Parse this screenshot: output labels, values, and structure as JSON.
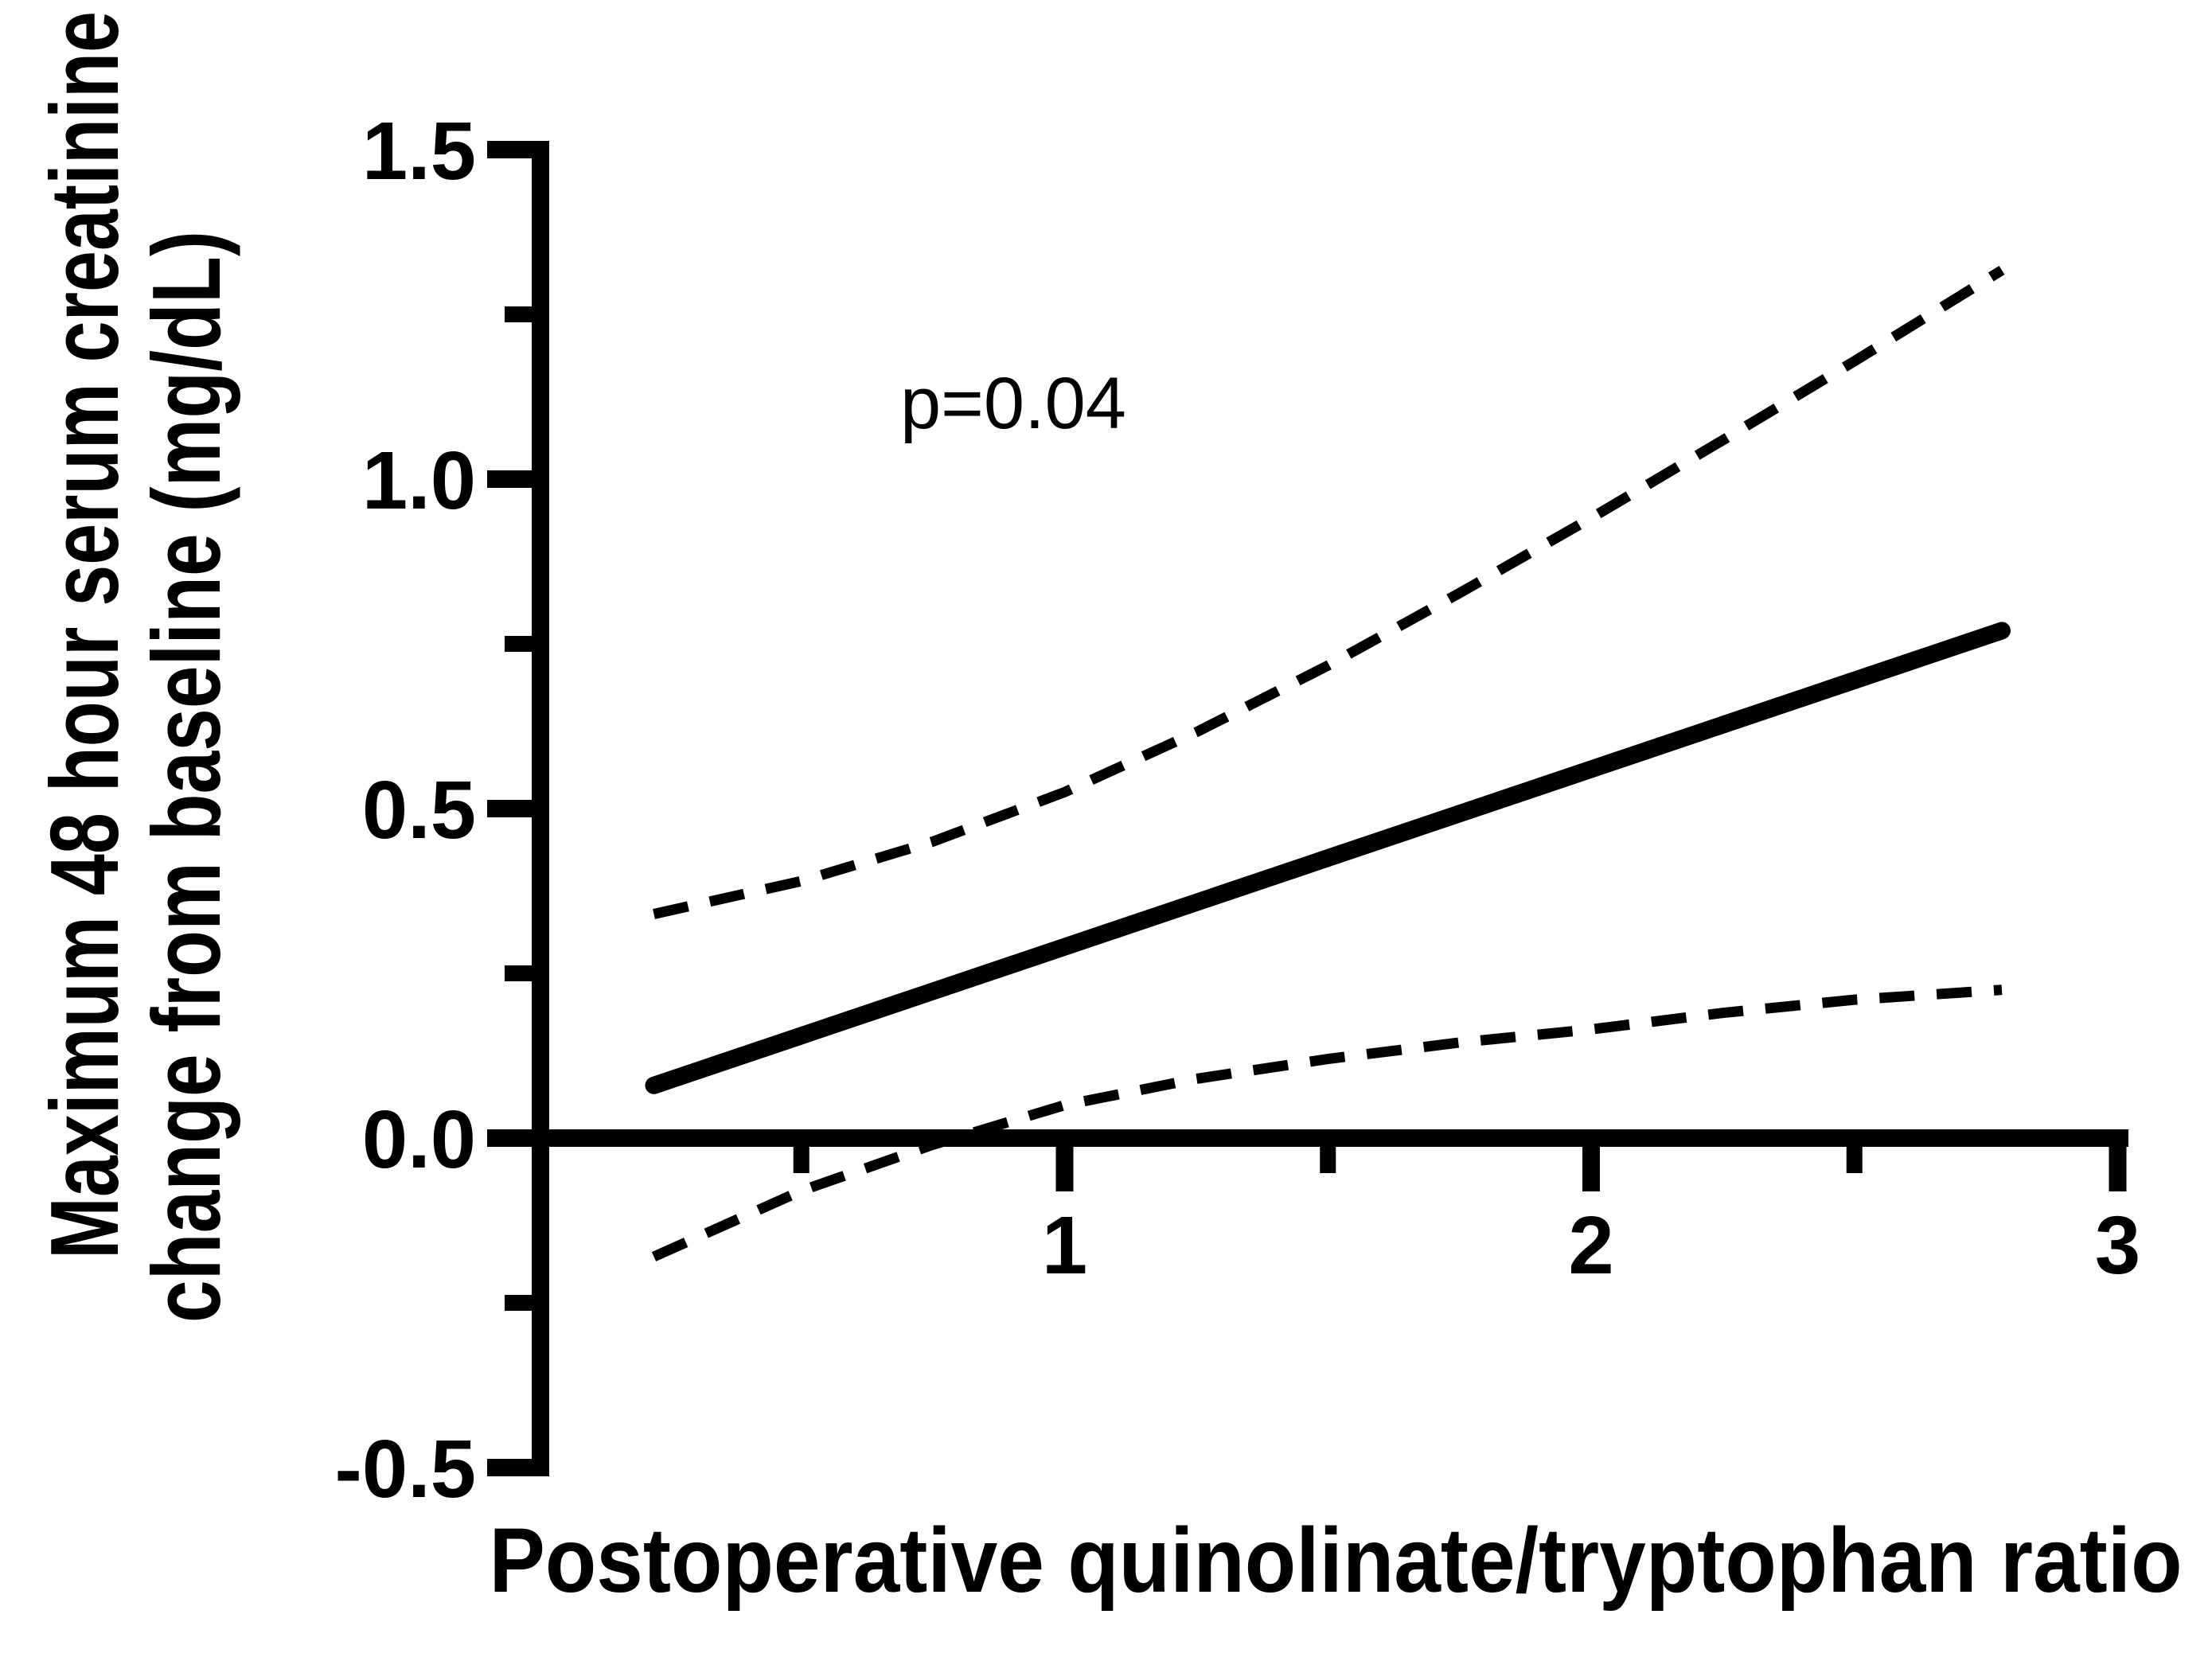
{
  "figure": {
    "background_color": "#ffffff",
    "ink_color": "#000000"
  },
  "chart_data": {
    "type": "line",
    "title": "",
    "xlabel": "Postoperative quinolinate/tryptophan ratio",
    "ylabel": "Maximum 48 hour serum creatinine change from baseline (mg/dL)",
    "ylabel_lines": [
      "Maximum 48 hour serum creatinine",
      "change from baseline (mg/dL)"
    ],
    "annotation": {
      "text": "p=0.04",
      "x": 0.9,
      "y": 1.12
    },
    "p_value": 0.04,
    "grid": false,
    "legend": "none",
    "x_axis": {
      "min": 0,
      "max": 3,
      "major_ticks": [
        1,
        2,
        3
      ],
      "tick_labels": [
        "1",
        "2",
        "3"
      ],
      "minor_ticks": [
        0.5,
        1.5,
        2.5
      ]
    },
    "y_axis": {
      "min": -0.5,
      "max": 1.5,
      "major_ticks": [
        1.5,
        1.0,
        0.5,
        0.0,
        -0.5
      ],
      "tick_labels": [
        "1.5",
        "1.0",
        "0.5",
        "0.0",
        "-0.5"
      ],
      "minor_ticks": [
        1.25,
        0.75,
        0.25,
        -0.25
      ]
    },
    "series": [
      {
        "name": "regression-fit",
        "style": "solid",
        "points": [
          [
            0.22,
            0.08
          ],
          [
            2.78,
            0.77
          ]
        ]
      },
      {
        "name": "ci-upper-bound",
        "style": "dashed",
        "points": [
          [
            0.22,
            0.34
          ],
          [
            0.5,
            0.39
          ],
          [
            0.75,
            0.45
          ],
          [
            1.0,
            0.525
          ],
          [
            1.25,
            0.616
          ],
          [
            1.5,
            0.717
          ],
          [
            1.75,
            0.827
          ],
          [
            2.0,
            0.941
          ],
          [
            2.25,
            1.059
          ],
          [
            2.5,
            1.179
          ],
          [
            2.78,
            1.317
          ]
        ]
      },
      {
        "name": "ci-lower-bound",
        "style": "dashed",
        "points": [
          [
            0.22,
            -0.18
          ],
          [
            0.5,
            -0.08
          ],
          [
            0.75,
            -0.01
          ],
          [
            1.0,
            0.05
          ],
          [
            1.25,
            0.09
          ],
          [
            1.5,
            0.12
          ],
          [
            1.75,
            0.145
          ],
          [
            2.0,
            0.165
          ],
          [
            2.25,
            0.19
          ],
          [
            2.5,
            0.21
          ],
          [
            2.78,
            0.225
          ]
        ]
      }
    ]
  }
}
